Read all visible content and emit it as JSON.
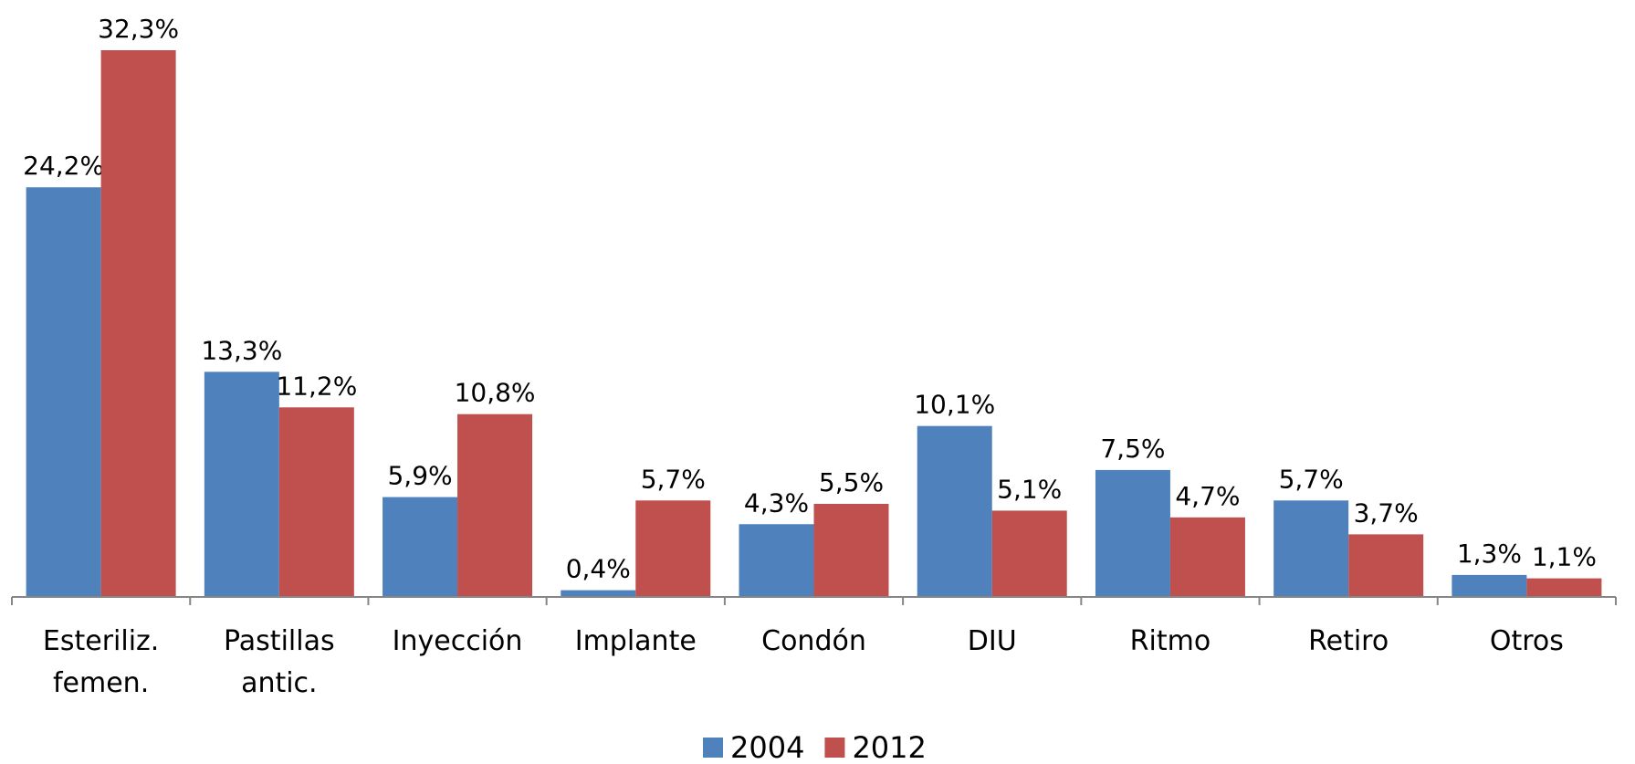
{
  "chart_data": {
    "type": "bar",
    "categories": [
      "Esteriliz. femen.",
      "Pastillas antic.",
      "Inyección",
      "Implante",
      "Condón",
      "DIU",
      "Ritmo",
      "Retiro",
      "Otros"
    ],
    "series": [
      {
        "name": "2004",
        "color": "#4f81bd",
        "values": [
          24.2,
          13.3,
          5.9,
          0.4,
          4.3,
          10.1,
          7.5,
          5.7,
          1.3
        ],
        "value_labels": [
          "24,2%",
          "13,3%",
          "5,9%",
          "0,4%",
          "4,3%",
          "10,1%",
          "7,5%",
          "5,7%",
          "1,3%"
        ]
      },
      {
        "name": "2012",
        "color": "#c0504d",
        "values": [
          32.3,
          11.2,
          10.8,
          5.7,
          5.5,
          5.1,
          4.7,
          3.7,
          1.1
        ],
        "value_labels": [
          "32,3%",
          "11,2%",
          "10,8%",
          "5,7%",
          "5,5%",
          "5,1%",
          "4,7%",
          "3,7%",
          "1,1%"
        ]
      }
    ],
    "legend": "bottom"
  }
}
